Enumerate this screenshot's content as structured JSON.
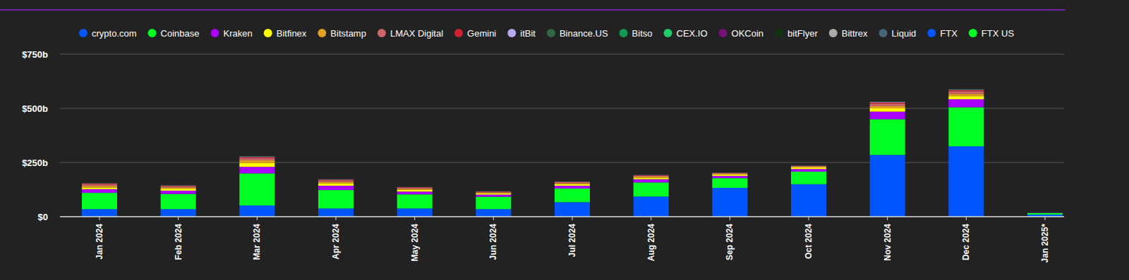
{
  "chart_data": {
    "type": "bar",
    "stacked": true,
    "grid": true,
    "legend": "top",
    "categories": [
      "Jan 2024",
      "Feb 2024",
      "Mar 2024",
      "Apr 2024",
      "May 2024",
      "Jun 2024",
      "Jul 2024",
      "Aug 2024",
      "Sep 2024",
      "Oct 2024",
      "Nov 2024",
      "Dec 2024",
      "Jan 2025*"
    ],
    "ylim": [
      0,
      750
    ],
    "yticks": [
      {
        "value": 0,
        "label": "$0"
      },
      {
        "value": 250,
        "label": "$250b"
      },
      {
        "value": 500,
        "label": "$500b"
      },
      {
        "value": 750,
        "label": "$750b"
      }
    ],
    "series": [
      {
        "name": "crypto.com",
        "color": "#0055ff",
        "values": [
          35,
          35,
          52,
          38,
          38,
          35,
          67,
          93,
          133,
          150,
          285,
          325,
          10
        ]
      },
      {
        "name": "Coinbase",
        "color": "#00ff22",
        "values": [
          75,
          70,
          148,
          85,
          65,
          57,
          63,
          65,
          45,
          58,
          165,
          180,
          7
        ]
      },
      {
        "name": "Kraken",
        "color": "#aa00ff",
        "values": [
          17,
          15,
          30,
          20,
          13,
          10,
          13,
          15,
          10,
          12,
          35,
          37,
          1
        ]
      },
      {
        "name": "Bitfinex",
        "color": "#ffff00",
        "values": [
          8,
          9,
          18,
          10,
          8,
          6,
          7,
          7,
          6,
          7,
          15,
          15,
          0
        ]
      },
      {
        "name": "Bitstamp",
        "color": "#e0a020",
        "values": [
          7,
          6,
          12,
          8,
          5,
          4,
          5,
          5,
          4,
          4,
          10,
          10,
          0
        ]
      },
      {
        "name": "LMAX Digital",
        "color": "#cc6666",
        "values": [
          8,
          6,
          10,
          7,
          5,
          3,
          5,
          5,
          3,
          3,
          12,
          12,
          0
        ]
      },
      {
        "name": "Gemini",
        "color": "#cc2233",
        "values": [
          3,
          2,
          5,
          3,
          2,
          1.5,
          1.5,
          1.5,
          1,
          1,
          5,
          5,
          0
        ]
      },
      {
        "name": "itBit",
        "color": "#b8a8f0",
        "values": [
          1,
          1,
          2,
          1,
          0.5,
          0.5,
          0.5,
          0.5,
          0.5,
          0.5,
          2,
          2,
          0
        ]
      },
      {
        "name": "Binance.US",
        "color": "#336644",
        "values": [
          0.5,
          0.5,
          1,
          0.5,
          0.3,
          0.3,
          0.3,
          0.3,
          0.3,
          0.3,
          1,
          1,
          0
        ]
      },
      {
        "name": "Bitso",
        "color": "#119955",
        "values": [
          0.3,
          0.3,
          0.5,
          0.3,
          0.2,
          0.2,
          0.2,
          0.2,
          0.2,
          0.2,
          0.5,
          0.5,
          0
        ]
      },
      {
        "name": "CEX.IO",
        "color": "#22cc66",
        "values": [
          0.3,
          0.3,
          0.5,
          0.3,
          0.2,
          0.2,
          0.2,
          0.2,
          0.2,
          0.2,
          0.5,
          0.5,
          0
        ]
      },
      {
        "name": "OKCoin",
        "color": "#771177",
        "values": [
          0.2,
          0.2,
          0.3,
          0.2,
          0.1,
          0.1,
          0.1,
          0.1,
          0.1,
          0.1,
          0.3,
          0.3,
          0
        ]
      },
      {
        "name": "bitFlyer",
        "color": "#113311",
        "values": [
          0.2,
          0.2,
          0.3,
          0.2,
          0.1,
          0.1,
          0.1,
          0.1,
          0.1,
          0.1,
          0.3,
          0.3,
          0
        ]
      },
      {
        "name": "Bittrex",
        "color": "#aaaaaa",
        "values": [
          0,
          0,
          0,
          0,
          0,
          0,
          0,
          0,
          0,
          0,
          0,
          0,
          0
        ]
      },
      {
        "name": "Liquid",
        "color": "#446677",
        "values": [
          0,
          0,
          0,
          0,
          0,
          0,
          0,
          0,
          0,
          0,
          0,
          0,
          0
        ]
      },
      {
        "name": "FTX",
        "color": "#0055ff",
        "values": [
          0,
          0,
          0,
          0,
          0,
          0,
          0,
          0,
          0,
          0,
          0,
          0,
          0
        ]
      },
      {
        "name": "FTX US",
        "color": "#00ff22",
        "values": [
          0,
          0,
          0,
          0,
          0,
          0,
          0,
          0,
          0,
          0,
          0,
          0,
          0
        ]
      }
    ]
  }
}
